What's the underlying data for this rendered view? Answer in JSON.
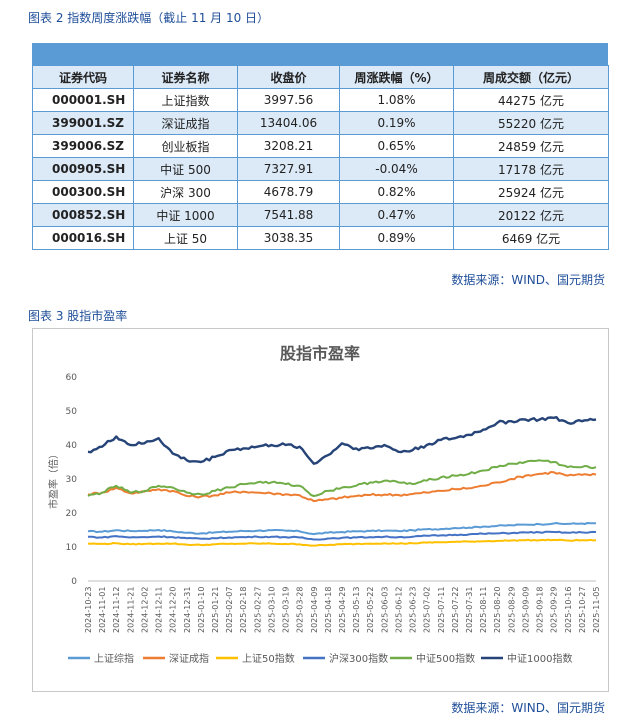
{
  "table_caption": "图表 2 指数周度涨跌幅（截止 11 月 10 日）",
  "table": {
    "headers": [
      "证券代码",
      "证券名称",
      "收盘价",
      "周涨跌幅（%）",
      "周成交额（亿元）"
    ],
    "rows": [
      [
        "000001.SH",
        "上证指数",
        "3997.56",
        "1.08%",
        "44275 亿元"
      ],
      [
        "399001.SZ",
        "深证成指",
        "13404.06",
        "0.19%",
        "55220 亿元"
      ],
      [
        "399006.SZ",
        "创业板指",
        "3208.21",
        "0.65%",
        "24859 亿元"
      ],
      [
        "000905.SH",
        "中证 500",
        "7327.91",
        "-0.04%",
        "17178 亿元"
      ],
      [
        "000300.SH",
        "沪深 300",
        "4678.79",
        "0.82%",
        "25924 亿元"
      ],
      [
        "000852.SH",
        "中证 1000",
        "7541.88",
        "0.47%",
        "20122 亿元"
      ],
      [
        "000016.SH",
        "上证 50",
        "3038.35",
        "0.89%",
        "6469 亿元"
      ]
    ]
  },
  "table_source": "数据来源：WIND、国元期货",
  "chart_caption": "图表 3 股指市盈率",
  "chart_source": "数据来源：WIND、国元期货",
  "chart_data": {
    "type": "line",
    "title": "股指市盈率",
    "xlabel": "",
    "ylabel": "市盈率（倍）",
    "ylim": [
      0,
      60
    ],
    "yticks": [
      0,
      10,
      20,
      30,
      40,
      50,
      60
    ],
    "grid": false,
    "legend_position": "bottom",
    "x_ticks": [
      "2024-10-23",
      "2024-11-01",
      "2024-11-12",
      "2024-11-21",
      "2024-12-02",
      "2024-12-11",
      "2024-12-20",
      "2024-12-31",
      "2025-01-10",
      "2025-01-21",
      "2025-02-07",
      "2025-02-18",
      "2025-02-27",
      "2025-03-10",
      "2025-03-19",
      "2025-03-28",
      "2025-04-09",
      "2025-04-18",
      "2025-04-29",
      "2025-05-13",
      "2025-05-22",
      "2025-06-03",
      "2025-06-12",
      "2025-06-23",
      "2025-07-02",
      "2025-07-11",
      "2025-07-22",
      "2025-07-31",
      "2025-08-11",
      "2025-08-20",
      "2025-08-29",
      "2025-09-09",
      "2025-09-18",
      "2025-09-29",
      "2025-10-16",
      "2025-10-27",
      "2025-11-05"
    ],
    "series": [
      {
        "name": "上证综指",
        "color": "#5b9bd5",
        "values": [
          14.6,
          14.5,
          14.9,
          14.7,
          14.8,
          15.0,
          14.6,
          14.2,
          14.0,
          14.3,
          14.5,
          14.7,
          14.8,
          14.9,
          14.8,
          14.6,
          13.8,
          14.2,
          14.4,
          14.6,
          14.7,
          14.8,
          14.7,
          14.9,
          15.2,
          15.3,
          15.6,
          15.7,
          16.0,
          16.2,
          16.4,
          16.6,
          16.7,
          16.9,
          16.8,
          16.9,
          17.0
        ]
      },
      {
        "name": "深证成指",
        "color": "#ed7d31",
        "values": [
          25.5,
          26.0,
          27.4,
          25.8,
          26.3,
          27.0,
          26.5,
          25.0,
          24.8,
          25.2,
          26.0,
          26.3,
          26.0,
          25.8,
          25.5,
          25.2,
          23.5,
          24.0,
          24.5,
          25.0,
          25.3,
          25.4,
          25.3,
          25.6,
          26.0,
          26.5,
          27.0,
          27.3,
          28.0,
          29.0,
          30.0,
          31.0,
          31.5,
          32.0,
          31.0,
          31.2,
          31.3
        ]
      },
      {
        "name": "上证50指数",
        "color": "#ffc000",
        "values": [
          11.0,
          10.9,
          11.1,
          10.8,
          10.9,
          11.0,
          11.0,
          10.7,
          10.6,
          10.8,
          10.9,
          11.0,
          11.0,
          11.0,
          10.9,
          10.8,
          10.4,
          10.6,
          10.8,
          10.9,
          11.0,
          11.1,
          11.0,
          11.1,
          11.3,
          11.4,
          11.5,
          11.6,
          11.7,
          11.8,
          11.9,
          12.0,
          12.0,
          12.1,
          11.9,
          12.0,
          12.0
        ]
      },
      {
        "name": "沪深300指数",
        "color": "#4472c4",
        "values": [
          13.0,
          12.8,
          13.2,
          12.8,
          12.9,
          13.1,
          12.9,
          12.6,
          12.4,
          12.6,
          12.8,
          12.9,
          13.0,
          13.0,
          12.9,
          12.8,
          12.2,
          12.5,
          12.7,
          12.8,
          12.9,
          13.0,
          12.9,
          13.0,
          13.3,
          13.4,
          13.6,
          13.7,
          13.9,
          14.0,
          14.1,
          14.3,
          14.3,
          14.4,
          14.2,
          14.3,
          14.4
        ]
      },
      {
        "name": "中证500指数",
        "color": "#70ad47",
        "values": [
          25.0,
          26.0,
          28.0,
          26.0,
          26.5,
          28.0,
          27.5,
          26.0,
          25.5,
          26.5,
          27.5,
          28.5,
          29.0,
          29.0,
          28.5,
          28.0,
          25.0,
          26.5,
          27.5,
          28.0,
          29.0,
          29.5,
          29.0,
          28.5,
          29.5,
          30.5,
          31.0,
          31.5,
          32.5,
          33.5,
          34.5,
          35.0,
          35.5,
          35.0,
          33.5,
          33.5,
          33.5
        ]
      },
      {
        "name": "中证1000指数",
        "color": "#264478",
        "values": [
          38.0,
          39.5,
          42.5,
          40.0,
          40.5,
          42.0,
          37.5,
          35.5,
          35.0,
          36.5,
          38.5,
          39.0,
          39.5,
          40.0,
          40.0,
          39.5,
          34.5,
          37.0,
          40.5,
          39.0,
          39.0,
          40.0,
          38.0,
          38.5,
          40.0,
          41.5,
          42.0,
          43.0,
          44.5,
          46.5,
          47.0,
          47.5,
          47.5,
          48.0,
          46.5,
          47.0,
          47.5
        ]
      }
    ]
  }
}
